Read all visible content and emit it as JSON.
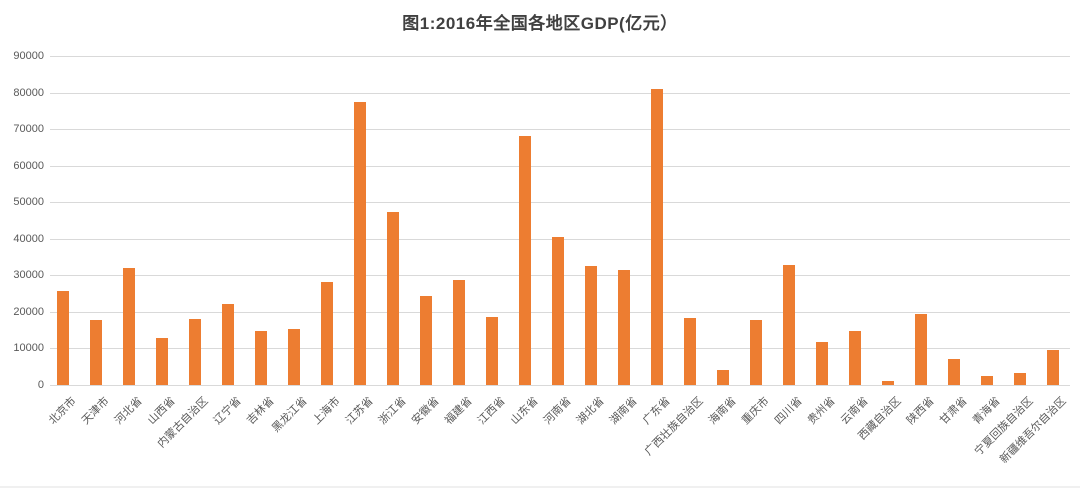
{
  "chart_data": {
    "type": "bar",
    "title": "图1:2016年全国各地区GDP(亿元）",
    "xlabel": "",
    "ylabel": "",
    "categories": [
      "北京市",
      "天津市",
      "河北省",
      "山西省",
      "内蒙古自治区",
      "辽宁省",
      "吉林省",
      "黑龙江省",
      "上海市",
      "江苏省",
      "浙江省",
      "安徽省",
      "福建省",
      "江西省",
      "山东省",
      "河南省",
      "湖北省",
      "湖南省",
      "广东省",
      "广西壮族自治区",
      "海南省",
      "重庆市",
      "四川省",
      "贵州省",
      "云南省",
      "西藏自治区",
      "陕西省",
      "甘肃省",
      "青海省",
      "宁夏回族自治区",
      "新疆维吾尔自治区"
    ],
    "values": [
      25669,
      17885,
      32070,
      12928,
      18128,
      22038,
      14886,
      15386,
      28179,
      77388,
      47251,
      24408,
      28811,
      18499,
      68024,
      40472,
      32665,
      31551,
      80855,
      18317,
      4053,
      17741,
      32934,
      11777,
      14870,
      1151,
      19399,
      7200,
      2572,
      3169,
      9650
    ],
    "ylim": [
      0,
      90000
    ],
    "yticks": [
      0,
      10000,
      20000,
      30000,
      40000,
      50000,
      60000,
      70000,
      80000,
      90000
    ],
    "grid": true,
    "legend_position": "none",
    "bar_color": "#ED7D31",
    "gridline_color": "#D9D9D9",
    "axis_label_color": "#595959",
    "title_color": "#404040"
  }
}
